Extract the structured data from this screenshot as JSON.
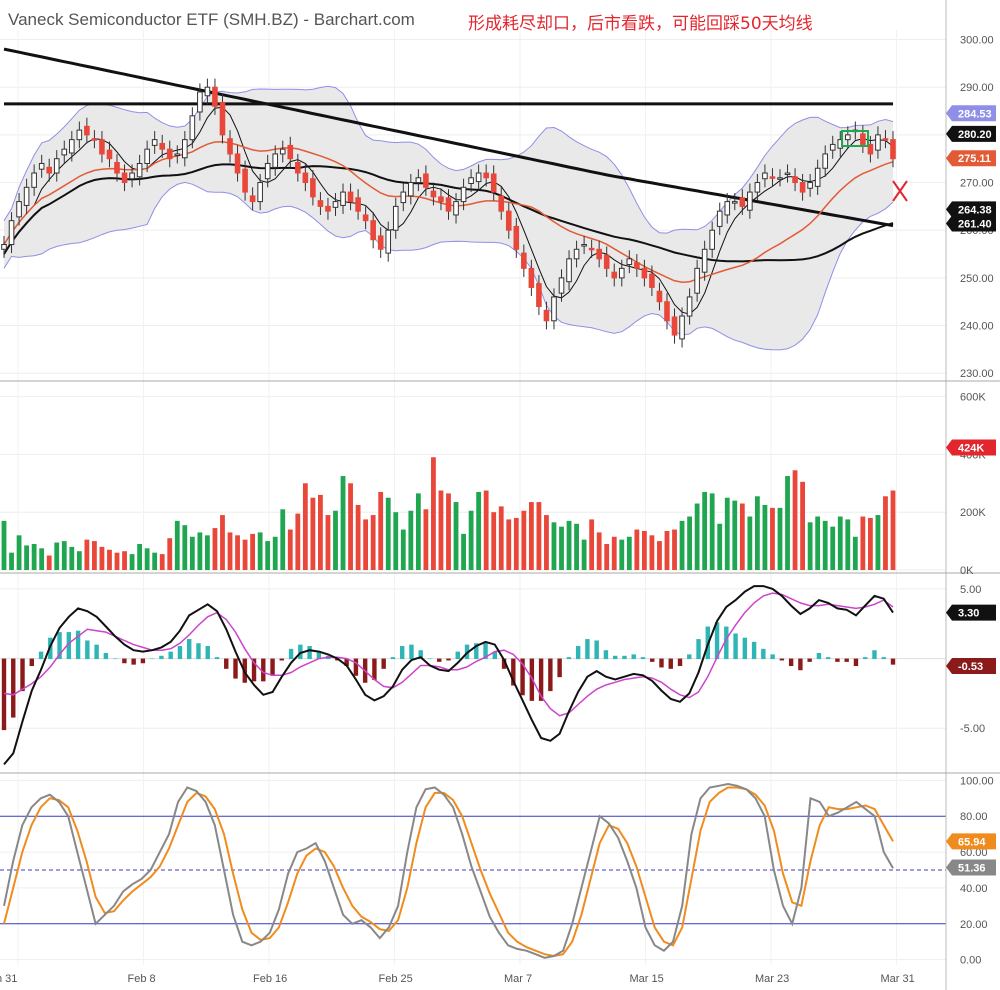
{
  "header": {
    "title": "Vaneck Semiconductor ETF (SMH.BZ) - Barchart.com",
    "annotation": "形成耗尽却口，后市看跌，可能回踩50天均线"
  },
  "colors": {
    "up": "#20a550",
    "down": "#e8473a",
    "bollinger_fill": "#e9e9e9",
    "bollinger_line": "#8f8fe8",
    "ma_black": "#111111",
    "ma_red": "#e35a36",
    "macd_line": "#111111",
    "macd_signal": "#cc44cc",
    "hist_pos": "#2fb5b5",
    "hist_neg": "#8b1a1a",
    "stoch_fast": "#888888",
    "stoch_slow": "#f08c1e",
    "stoch_band": "#3b3bc8",
    "annotation": "#e3262e"
  },
  "x_axis": {
    "labels": [
      "n 31",
      "Feb 8",
      "Feb 16",
      "Feb 25",
      "Mar 7",
      "Mar 15",
      "Mar 23",
      "Mar 31"
    ]
  },
  "chart_data": [
    {
      "type": "candlestick",
      "panel": "price",
      "y_ticks": [
        "300.00",
        "290.00",
        "280.00",
        "270.00",
        "260.00",
        "250.00",
        "240.00",
        "230.00"
      ],
      "ylim": [
        229,
        302
      ],
      "last_value_labels": [
        {
          "text": "284.53",
          "value": 284.53,
          "color": "#8f8fe8"
        },
        {
          "text": "280.20",
          "value": 280.2,
          "color": "#111111"
        },
        {
          "text": "275.11",
          "value": 275.11,
          "color": "#e35a36"
        },
        {
          "text": "264.38",
          "value": 264.38,
          "color": "#111111"
        },
        {
          "text": "261.40",
          "value": 261.4,
          "color": "#111111"
        }
      ],
      "close": [
        257,
        262,
        266,
        269,
        272,
        274,
        272,
        275,
        277,
        279,
        281,
        280,
        279,
        276,
        275,
        272,
        270,
        272,
        274,
        277,
        279,
        277,
        275,
        276,
        279,
        284,
        289,
        290,
        286,
        280,
        276,
        272,
        268,
        266,
        270,
        274,
        276,
        277,
        275,
        272,
        270,
        267,
        265,
        264,
        266,
        268,
        266,
        264,
        262,
        258,
        256,
        260,
        265,
        268,
        270,
        271,
        269,
        267,
        266,
        264,
        266,
        269,
        271,
        272,
        271,
        268,
        264,
        260,
        256,
        252,
        248,
        244,
        241,
        246,
        250,
        254,
        256,
        257,
        256,
        254,
        252,
        250,
        252,
        254,
        252,
        250,
        248,
        245,
        241,
        238,
        242,
        246,
        252,
        256,
        260,
        264,
        266,
        266,
        265,
        268,
        270,
        272,
        271,
        271,
        272,
        270,
        268,
        270,
        273,
        276,
        278,
        279,
        280,
        281,
        278,
        276,
        280,
        279,
        275
      ],
      "volume_k": [
        170,
        60,
        120,
        85,
        90,
        75,
        50,
        95,
        100,
        80,
        65,
        105,
        100,
        80,
        70,
        60,
        65,
        55,
        90,
        75,
        60,
        55,
        110,
        170,
        155,
        115,
        130,
        120,
        145,
        190,
        130,
        120,
        105,
        125,
        130,
        100,
        115,
        210,
        140,
        195,
        300,
        250,
        260,
        190,
        205,
        325,
        300,
        225,
        175,
        190,
        270,
        250,
        200,
        140,
        205,
        265,
        210,
        390,
        275,
        265,
        235,
        125,
        205,
        270,
        275,
        200,
        220,
        175,
        180,
        205,
        235,
        235,
        190,
        165,
        150,
        170,
        160,
        105,
        175,
        130,
        90,
        115,
        105,
        115,
        140,
        135,
        120,
        100,
        135,
        140,
        170,
        185,
        230,
        270,
        265,
        160,
        250,
        240,
        230,
        185,
        255,
        225,
        215,
        215,
        325,
        345,
        305,
        165,
        185,
        170,
        150,
        185,
        175,
        115,
        185,
        180,
        190,
        255,
        275,
        280,
        225
      ],
      "volume_ticks": [
        "600K",
        "400K",
        "200K",
        "0K"
      ],
      "volume_ylim": [
        0,
        640
      ],
      "volume_last_label": "424K"
    },
    {
      "type": "line",
      "panel": "macd",
      "y_ticks": [
        "5.00",
        "-5.00"
      ],
      "ylim": [
        -8,
        6
      ],
      "series": [
        {
          "values": [
            -7.6,
            -6.8,
            -4.5,
            -2.3,
            -0.8,
            0.9,
            2.2,
            3.0,
            3.6,
            3.4,
            3.0,
            2.3,
            1.6,
            1.0,
            0.6,
            0.5,
            0.6,
            0.8,
            1.2,
            2.0,
            3.1,
            3.5,
            3.9,
            3.4,
            2.1,
            0.5,
            -1.0,
            -1.9,
            -2.6,
            -2.4,
            -1.3,
            -0.3,
            0.4,
            0.6,
            0.5,
            0.3,
            0.0,
            -0.5,
            -1.5,
            -2.6,
            -3.0,
            -2.7,
            -2.0,
            -0.8,
            -0.1,
            0.1,
            -0.5,
            -0.8,
            -0.9,
            -0.3,
            0.4,
            0.9,
            1.2,
            1.0,
            -0.1,
            -1.6,
            -3.0,
            -4.4,
            -5.7,
            -5.9,
            -5.4,
            -3.8,
            -2.4,
            -1.3,
            -0.9,
            -1.3,
            -1.5,
            -1.3,
            -1.1,
            -1.2,
            -1.6,
            -2.3,
            -2.9,
            -3.1,
            -2.5,
            -1.0,
            1.0,
            2.7,
            3.7,
            4.2,
            4.8,
            5.2,
            5.2,
            5.0,
            4.5,
            3.8,
            3.2,
            3.6,
            4.2,
            4.0,
            3.6,
            3.5,
            3.1,
            3.8,
            4.5,
            4.3,
            3.3
          ]
        },
        {
          "values": [
            -2.5,
            -2.6,
            -2.2,
            -1.8,
            -1.3,
            -0.6,
            0.3,
            1.1,
            1.6,
            2.1,
            2.0,
            1.9,
            1.6,
            1.3,
            1.0,
            0.8,
            0.6,
            0.6,
            0.7,
            1.1,
            1.7,
            2.4,
            3.0,
            3.3,
            2.8,
            1.9,
            0.7,
            -0.3,
            -1.0,
            -1.2,
            -1.2,
            -1.0,
            -0.6,
            -0.3,
            0.0,
            0.1,
            0.1,
            0.0,
            -0.3,
            -0.9,
            -1.5,
            -2.0,
            -2.1,
            -1.7,
            -1.1,
            -0.5,
            -0.5,
            -0.6,
            -0.8,
            -0.8,
            -0.6,
            -0.2,
            0.1,
            0.5,
            0.6,
            0.3,
            -0.4,
            -1.4,
            -2.7,
            -3.6,
            -4.1,
            -3.9,
            -3.3,
            -2.7,
            -2.2,
            -1.9,
            -1.7,
            -1.5,
            -1.4,
            -1.3,
            -1.4,
            -1.7,
            -2.2,
            -2.6,
            -2.8,
            -2.4,
            -1.3,
            0.1,
            1.4,
            2.4,
            3.3,
            4.0,
            4.5,
            4.7,
            4.6,
            4.3,
            4.0,
            3.8,
            3.8,
            3.9,
            3.8,
            3.7,
            3.6,
            3.7,
            3.9,
            4.2,
            3.7
          ]
        }
      ],
      "last_value_labels": [
        {
          "text": "3.30",
          "value": 3.3,
          "color": "#111111"
        },
        {
          "text": "-0.53",
          "value": -0.53,
          "color": "#8b1a1a"
        }
      ]
    },
    {
      "type": "line",
      "panel": "stochastic",
      "y_ticks": [
        "100.00",
        "80.00",
        "60.00",
        "40.00",
        "20.00",
        "0.00"
      ],
      "ylim": [
        -3,
        103
      ],
      "bands": [
        80,
        50,
        20
      ],
      "series": [
        {
          "values": [
            30,
            55,
            75,
            85,
            90,
            92,
            88,
            80,
            60,
            40,
            20,
            25,
            30,
            38,
            42,
            45,
            50,
            60,
            70,
            88,
            96,
            94,
            88,
            75,
            50,
            25,
            10,
            8,
            10,
            15,
            28,
            48,
            60,
            62,
            65,
            55,
            40,
            25,
            20,
            22,
            18,
            12,
            18,
            30,
            60,
            85,
            95,
            96,
            92,
            85,
            70,
            52,
            38,
            24,
            15,
            8,
            6,
            5,
            3,
            1,
            2,
            5,
            20,
            40,
            60,
            80,
            76,
            68,
            55,
            40,
            18,
            8,
            5,
            10,
            30,
            70,
            90,
            96,
            97,
            98,
            97,
            95,
            90,
            80,
            50,
            30,
            20,
            40,
            90,
            88,
            80,
            82,
            85,
            88,
            84,
            80,
            60,
            51
          ]
        },
        {
          "values": [
            20,
            40,
            60,
            75,
            85,
            90,
            89,
            85,
            72,
            55,
            35,
            26,
            27,
            33,
            38,
            42,
            46,
            52,
            62,
            75,
            88,
            93,
            91,
            84,
            70,
            48,
            28,
            15,
            11,
            12,
            18,
            32,
            48,
            58,
            62,
            60,
            52,
            40,
            30,
            24,
            21,
            17,
            16,
            22,
            40,
            65,
            85,
            93,
            93,
            89,
            80,
            65,
            50,
            37,
            26,
            15,
            10,
            7,
            5,
            3,
            2,
            3,
            10,
            25,
            45,
            65,
            75,
            73,
            65,
            52,
            35,
            18,
            10,
            8,
            18,
            45,
            72,
            88,
            93,
            96,
            96,
            95,
            92,
            86,
            72,
            48,
            32,
            30,
            55,
            75,
            85,
            84,
            84,
            85,
            86,
            84,
            75,
            66
          ]
        }
      ],
      "last_value_labels": [
        {
          "text": "65.94",
          "value": 65.94,
          "color": "#f08c1e"
        },
        {
          "text": "51.36",
          "value": 51.36,
          "color": "#888888"
        }
      ]
    }
  ]
}
